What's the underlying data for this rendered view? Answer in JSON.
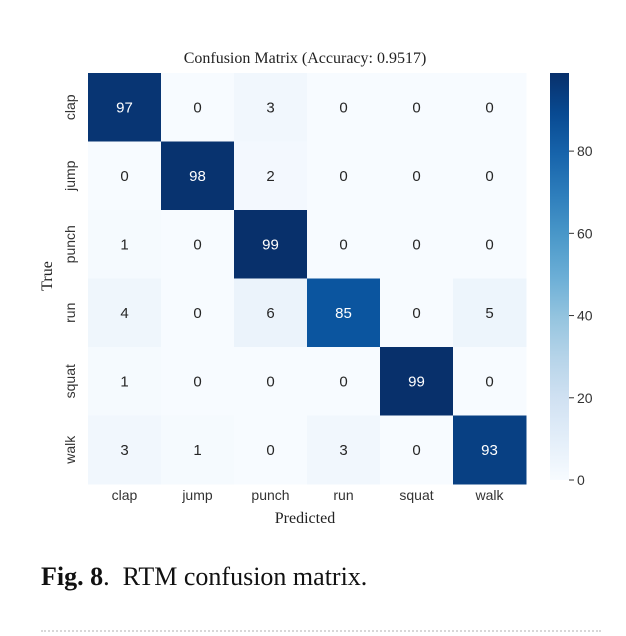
{
  "caption": {
    "figure_number": "Fig. 8",
    "text": "RTM confusion matrix."
  },
  "chart_data": {
    "type": "heatmap",
    "title": "Confusion Matrix (Accuracy: 0.9517)",
    "xlabel": "Predicted",
    "ylabel": "True",
    "x_categories": [
      "clap",
      "jump",
      "punch",
      "run",
      "squat",
      "walk"
    ],
    "y_categories": [
      "clap",
      "jump",
      "punch",
      "run",
      "squat",
      "walk"
    ],
    "values": [
      [
        97,
        0,
        3,
        0,
        0,
        0
      ],
      [
        0,
        98,
        2,
        0,
        0,
        0
      ],
      [
        1,
        0,
        99,
        0,
        0,
        0
      ],
      [
        4,
        0,
        6,
        85,
        0,
        5
      ],
      [
        1,
        0,
        0,
        0,
        99,
        0
      ],
      [
        3,
        1,
        0,
        3,
        0,
        93
      ]
    ],
    "colormap": "Blues",
    "colorbar": {
      "range": [
        0,
        99
      ],
      "ticks": [
        0,
        20,
        40,
        60,
        80
      ]
    },
    "colors": {
      "low": "#f7fbff",
      "high": "#08306b"
    }
  }
}
